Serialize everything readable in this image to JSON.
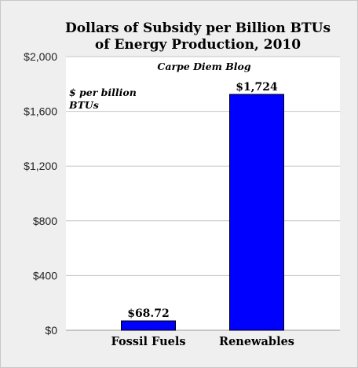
{
  "chart_data": {
    "type": "bar",
    "title": "Dollars of Subsidy per Billion BTUs of Energy Production, 2010",
    "title_lines": [
      "Dollars of Subsidy per Billion BTUs",
      "of Energy Production, 2010"
    ],
    "source": "Carpe Diem Blog",
    "unit_note": "$ per billion BTUs",
    "unit_note_lines": [
      "$ per billion",
      "BTUs"
    ],
    "categories": [
      "Fossil Fuels",
      "Renewables"
    ],
    "values": [
      68.72,
      1724
    ],
    "data_labels": [
      "$68.72",
      "$1,724"
    ],
    "ylim": [
      0,
      2000
    ],
    "yticks": [
      0,
      400,
      800,
      1200,
      1600,
      2000
    ],
    "ytick_labels": [
      "$0",
      "$400",
      "$800",
      "$1,200",
      "$1,600",
      "$2,000"
    ],
    "grid": true,
    "xlabel": "",
    "ylabel": "",
    "bar_color": "#0000ff",
    "bar_border_color": "#000000"
  }
}
